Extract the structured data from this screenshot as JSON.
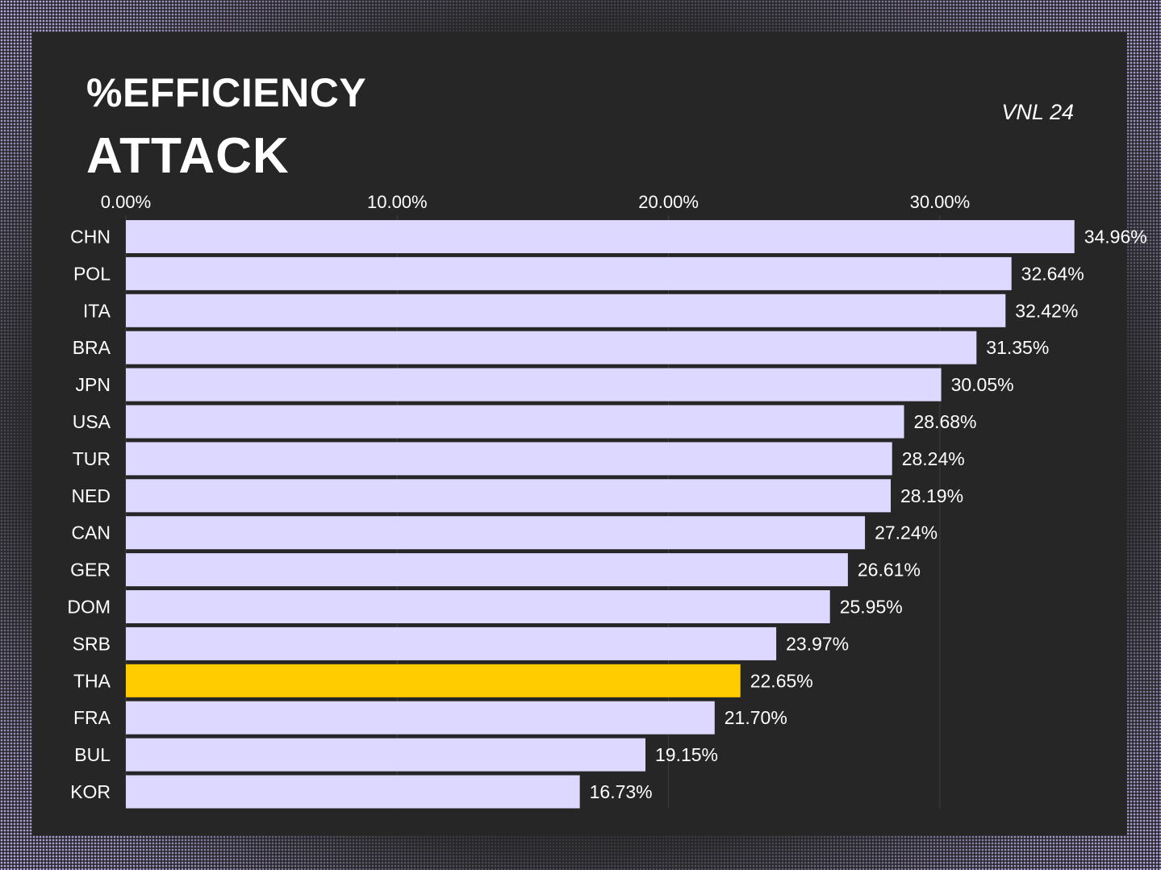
{
  "chart_data": {
    "type": "bar",
    "orientation": "horizontal",
    "title": "%EFFICIENCY",
    "subtitle": "ATTACK",
    "tag": "VNL 24",
    "categories": [
      "CHN",
      "POL",
      "ITA",
      "BRA",
      "JPN",
      "USA",
      "TUR",
      "NED",
      "CAN",
      "GER",
      "DOM",
      "SRB",
      "THA",
      "FRA",
      "BUL",
      "KOR"
    ],
    "values": [
      34.96,
      32.64,
      32.42,
      31.35,
      30.05,
      28.68,
      28.24,
      28.19,
      27.24,
      26.61,
      25.95,
      23.97,
      22.65,
      21.7,
      19.15,
      16.73
    ],
    "value_labels": [
      "34.96%",
      "32.64%",
      "32.42%",
      "31.35%",
      "30.05%",
      "28.68%",
      "28.24%",
      "28.19%",
      "27.24%",
      "26.61%",
      "25.95%",
      "23.97%",
      "22.65%",
      "21.70%",
      "19.15%",
      "16.73%"
    ],
    "x_ticks": [
      0,
      10,
      20,
      30
    ],
    "x_tick_labels": [
      "0.00%",
      "10.00%",
      "20.00%",
      "30.00%"
    ],
    "xlim": [
      0,
      35
    ],
    "axis_position": "top",
    "grid": true,
    "highlight": "THA",
    "colors": {
      "bar": "#ddd8ff",
      "highlight": "#ffcc00",
      "background": "#262626",
      "text": "#ffffff",
      "grid": "#3e3e3e"
    }
  }
}
